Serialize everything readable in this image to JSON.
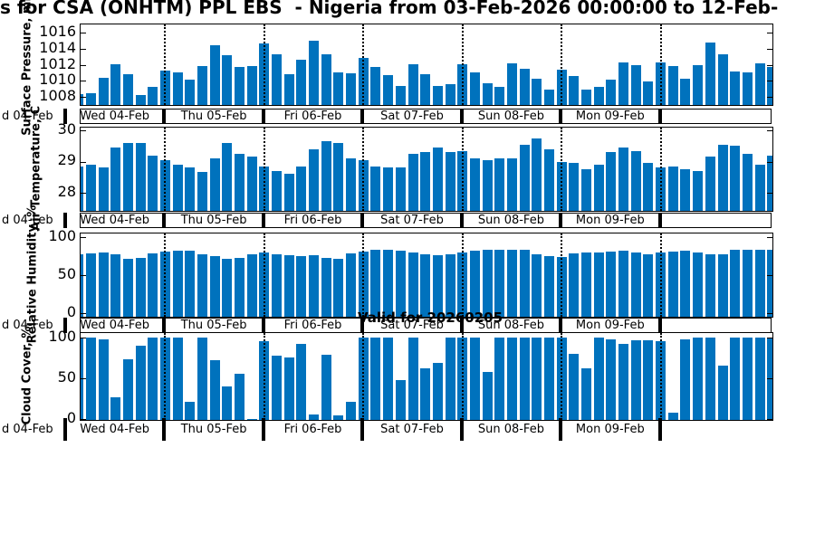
{
  "title": "s for CSA (ONHTM) PPL EBS  - Nigeria from 03-Feb-2026 00:00:00 to 12-Feb-",
  "valid_label": "Valid for 20260205",
  "colors": {
    "bar": "#0072BD",
    "axis": "#000000",
    "background": "#ffffff"
  },
  "x_axis": {
    "day_labels": [
      "Wed 04-Feb",
      "Thu 05-Feb",
      "Fri 06-Feb",
      "Sat 07-Feb",
      "Sun 08-Feb",
      "Mon 09-Feb"
    ],
    "left_clipped_label": "d 04-Feb",
    "points_per_day": 8
  },
  "chart_data": [
    {
      "type": "bar",
      "ylabel": "Surface Pressure, mb",
      "yticks": [
        1008,
        1010,
        1012,
        1014,
        1016
      ],
      "ylim": [
        1007,
        1017
      ],
      "values": [
        1008.4,
        1008.5,
        1010.4,
        1012.1,
        1010.8,
        1008.2,
        1009.2,
        1011.3,
        1011.1,
        1010.1,
        1011.8,
        1014.4,
        1013.2,
        1011.7,
        1011.8,
        1014.6,
        1013.3,
        1010.8,
        1012.6,
        1015.0,
        1013.3,
        1011.1,
        1010.9,
        1012.8,
        1011.7,
        1010.7,
        1009.4,
        1012.1,
        1010.8,
        1009.4,
        1009.6,
        1012.1,
        1011.0,
        1009.7,
        1009.2,
        1012.2,
        1011.5,
        1010.3,
        1008.9,
        1011.4,
        1010.6,
        1008.9,
        1009.3,
        1010.1,
        1012.3,
        1011.9,
        1009.9,
        1012.3,
        1011.8,
        1010.3,
        1012.0,
        1014.8,
        1013.3,
        1011.2,
        1011.0,
        1012.2,
        1011.7
      ]
    },
    {
      "type": "bar",
      "ylabel": "Air Temperature, C",
      "yticks": [
        28,
        29,
        30
      ],
      "ylim": [
        27.4,
        30.1
      ],
      "values": [
        28.85,
        28.9,
        28.8,
        29.45,
        29.6,
        29.6,
        29.2,
        29.05,
        28.9,
        28.8,
        28.65,
        29.1,
        29.6,
        29.25,
        29.15,
        28.85,
        28.7,
        28.6,
        28.85,
        29.4,
        29.65,
        29.6,
        29.1,
        29.05,
        28.85,
        28.8,
        28.8,
        29.25,
        29.3,
        29.45,
        29.3,
        29.35,
        29.1,
        29.05,
        29.1,
        29.1,
        29.55,
        29.75,
        29.4,
        29.0,
        28.95,
        28.75,
        28.9,
        29.3,
        29.45,
        29.35,
        28.95,
        28.8,
        28.85,
        28.75,
        28.7,
        29.15,
        29.55,
        29.5,
        29.25,
        28.9,
        29.2
      ]
    },
    {
      "type": "bar",
      "ylabel": "Relative Humidity, %",
      "yticks": [
        0,
        50,
        100
      ],
      "ylim": [
        -5,
        105
      ],
      "values": [
        78,
        79,
        80,
        77,
        72,
        73,
        79,
        81,
        82,
        82,
        78,
        75,
        71,
        73,
        78,
        80,
        78,
        76,
        75,
        76,
        73,
        71,
        79,
        81,
        84,
        83,
        82,
        80,
        77,
        76,
        77,
        80,
        82,
        84,
        84,
        83,
        83,
        78,
        75,
        74,
        79,
        80,
        80,
        81,
        82,
        80,
        78,
        80,
        81,
        82,
        80,
        78,
        77,
        84,
        84,
        84,
        83
      ]
    },
    {
      "type": "bar",
      "ylabel": "Cloud Cover, %",
      "yticks": [
        0,
        50,
        100
      ],
      "ylim": [
        -1.2,
        105
      ],
      "values": [
        100,
        100,
        97,
        26,
        73,
        90,
        100,
        100,
        100,
        21,
        100,
        72,
        40,
        55,
        0,
        95,
        77,
        75,
        92,
        5,
        78,
        4,
        21,
        100,
        100,
        100,
        47,
        100,
        62,
        68,
        100,
        100,
        100,
        57,
        100,
        100,
        100,
        100,
        100,
        100,
        80,
        62,
        100,
        97,
        92,
        96,
        96,
        95,
        8,
        97,
        100,
        100,
        65,
        100,
        100,
        100,
        100
      ]
    }
  ]
}
